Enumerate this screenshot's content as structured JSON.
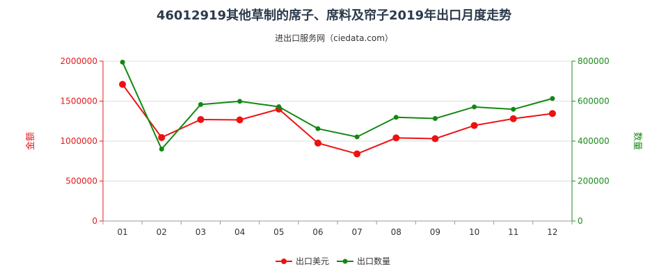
{
  "header": {
    "title": "46012919其他草制的席子、席料及帘子2019年出口月度走势",
    "subtitle": "进出口服务网（ciedata.com）"
  },
  "colors": {
    "left_axis": "#e31a1c",
    "right_axis": "#1a8a1a",
    "series_usd": "#ee1111",
    "series_qty": "#118811",
    "grid": "#dddddd"
  },
  "chart_data": {
    "type": "line",
    "categories": [
      "01",
      "02",
      "03",
      "04",
      "05",
      "06",
      "07",
      "08",
      "09",
      "10",
      "11",
      "12"
    ],
    "y_left": {
      "label": "金额",
      "range": [
        0,
        2000000
      ],
      "ticks": [
        "0",
        "500000",
        "1000000",
        "1500000",
        "2000000"
      ]
    },
    "y_right": {
      "label": "数量",
      "range": [
        0,
        800000
      ],
      "ticks": [
        "0",
        "200000",
        "400000",
        "600000",
        "800000"
      ]
    },
    "series": [
      {
        "name": "出口美元",
        "axis": "left",
        "values": [
          1710000,
          1045000,
          1270000,
          1265000,
          1400000,
          975000,
          840000,
          1040000,
          1030000,
          1195000,
          1280000,
          1345000
        ]
      },
      {
        "name": "出口数量",
        "axis": "right",
        "values": [
          795000,
          360000,
          583000,
          599000,
          572000,
          462000,
          421000,
          519000,
          513000,
          571000,
          559000,
          613000
        ]
      }
    ],
    "legend_position": "bottom-center",
    "grid": true
  }
}
